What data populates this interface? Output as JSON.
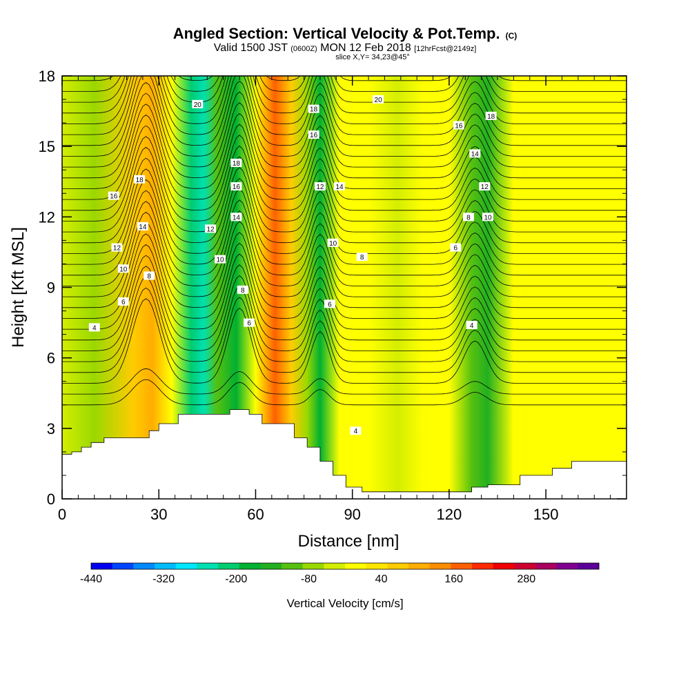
{
  "header": {
    "title": "Angled Section: Vertical Velocity & Pot.Temp.",
    "title_unit": "(C)",
    "valid_prefix": "Valid 1500 JST",
    "valid_utc": "(0600Z)",
    "valid_date": "MON 12 Feb 2018",
    "forecast": "[12hrFcst@2149z]",
    "slice": "slice X,Y= 34,23@45°"
  },
  "chart_data": {
    "type": "heatmap",
    "xlabel": "Distance [nm]",
    "ylabel": "Height [Kft MSL]",
    "xlim": [
      0,
      175
    ],
    "ylim": [
      0,
      18
    ],
    "x_ticks": [
      0,
      30,
      60,
      90,
      120,
      150
    ],
    "y_ticks": [
      0,
      3,
      6,
      9,
      12,
      15,
      18
    ],
    "x_tick_labels": [
      "0",
      "30",
      "60",
      "90",
      "120",
      "150"
    ],
    "y_tick_labels": [
      "0",
      "3",
      "6",
      "9",
      "12",
      "15",
      "18"
    ],
    "fill_variable": "Vertical Velocity [cm/s]",
    "contour_variable": "Potential temperature (C)",
    "vertical_velocity_columns": [
      {
        "x": 0,
        "w": 0
      },
      {
        "x": 10,
        "w": -30
      },
      {
        "x": 22,
        "w": 130
      },
      {
        "x": 28,
        "w": 170
      },
      {
        "x": 34,
        "w": 50
      },
      {
        "x": 40,
        "w": -170
      },
      {
        "x": 44,
        "w": -230
      },
      {
        "x": 48,
        "w": -60
      },
      {
        "x": 54,
        "w": -150
      },
      {
        "x": 60,
        "w": 60
      },
      {
        "x": 66,
        "w": 250
      },
      {
        "x": 71,
        "w": 130
      },
      {
        "x": 76,
        "w": -30
      },
      {
        "x": 80,
        "w": -150
      },
      {
        "x": 86,
        "w": 40
      },
      {
        "x": 95,
        "w": 60
      },
      {
        "x": 104,
        "w": 20
      },
      {
        "x": 112,
        "w": 40
      },
      {
        "x": 120,
        "w": 70
      },
      {
        "x": 127,
        "w": -60
      },
      {
        "x": 132,
        "w": -120
      },
      {
        "x": 140,
        "w": 60
      },
      {
        "x": 150,
        "w": 40
      },
      {
        "x": 162,
        "w": 70
      },
      {
        "x": 175,
        "w": 40
      }
    ],
    "terrain_height": [
      {
        "x": 0,
        "h": 1.9
      },
      {
        "x": 3,
        "h": 2.0
      },
      {
        "x": 6,
        "h": 2.2
      },
      {
        "x": 9,
        "h": 2.4
      },
      {
        "x": 13,
        "h": 2.6
      },
      {
        "x": 27,
        "h": 2.9
      },
      {
        "x": 30,
        "h": 3.2
      },
      {
        "x": 36,
        "h": 3.6
      },
      {
        "x": 48,
        "h": 3.6
      },
      {
        "x": 52,
        "h": 3.8
      },
      {
        "x": 58,
        "h": 3.6
      },
      {
        "x": 62,
        "h": 3.2
      },
      {
        "x": 68,
        "h": 3.2
      },
      {
        "x": 72,
        "h": 2.6
      },
      {
        "x": 76,
        "h": 2.2
      },
      {
        "x": 80,
        "h": 1.6
      },
      {
        "x": 84,
        "h": 1.0
      },
      {
        "x": 88,
        "h": 0.5
      },
      {
        "x": 93,
        "h": 0.3
      },
      {
        "x": 122,
        "h": 0.3
      },
      {
        "x": 127,
        "h": 0.5
      },
      {
        "x": 132,
        "h": 0.6
      },
      {
        "x": 142,
        "h": 1.0
      },
      {
        "x": 152,
        "h": 1.3
      },
      {
        "x": 158,
        "h": 1.6
      },
      {
        "x": 175,
        "h": 1.6
      }
    ],
    "contour_labels": [
      {
        "x": 24,
        "y": 13.6,
        "text": "18"
      },
      {
        "x": 16,
        "y": 12.9,
        "text": "16"
      },
      {
        "x": 25,
        "y": 11.6,
        "text": "14"
      },
      {
        "x": 17,
        "y": 10.7,
        "text": "12"
      },
      {
        "x": 19,
        "y": 9.8,
        "text": "10"
      },
      {
        "x": 27,
        "y": 9.5,
        "text": "8"
      },
      {
        "x": 19,
        "y": 8.4,
        "text": "6"
      },
      {
        "x": 10,
        "y": 7.3,
        "text": "4"
      },
      {
        "x": 42,
        "y": 16.8,
        "text": "20"
      },
      {
        "x": 54,
        "y": 14.3,
        "text": "18"
      },
      {
        "x": 54,
        "y": 13.3,
        "text": "16"
      },
      {
        "x": 54,
        "y": 12.0,
        "text": "14"
      },
      {
        "x": 46,
        "y": 11.5,
        "text": "12"
      },
      {
        "x": 49,
        "y": 10.2,
        "text": "10"
      },
      {
        "x": 56,
        "y": 8.9,
        "text": "8"
      },
      {
        "x": 58,
        "y": 7.5,
        "text": "6"
      },
      {
        "x": 78,
        "y": 16.6,
        "text": "18"
      },
      {
        "x": 78,
        "y": 15.5,
        "text": "16"
      },
      {
        "x": 80,
        "y": 13.3,
        "text": "12"
      },
      {
        "x": 86,
        "y": 13.3,
        "text": "14"
      },
      {
        "x": 84,
        "y": 10.9,
        "text": "10"
      },
      {
        "x": 83,
        "y": 8.3,
        "text": "6"
      },
      {
        "x": 93,
        "y": 10.3,
        "text": "8"
      },
      {
        "x": 98,
        "y": 17.0,
        "text": "20"
      },
      {
        "x": 123,
        "y": 15.9,
        "text": "16"
      },
      {
        "x": 133,
        "y": 16.3,
        "text": "18"
      },
      {
        "x": 128,
        "y": 14.7,
        "text": "14"
      },
      {
        "x": 131,
        "y": 13.3,
        "text": "12"
      },
      {
        "x": 132,
        "y": 12.0,
        "text": "10"
      },
      {
        "x": 126,
        "y": 12.0,
        "text": "8"
      },
      {
        "x": 122,
        "y": 10.7,
        "text": "6"
      },
      {
        "x": 127,
        "y": 7.4,
        "text": "4"
      },
      {
        "x": 91,
        "y": 2.9,
        "text": "4"
      }
    ],
    "colorbar": {
      "title": "Vertical Velocity [cm/s]",
      "tick_labels": [
        "-440",
        "-320",
        "-200",
        "-80",
        "40",
        "160",
        "280"
      ],
      "tick_values": [
        -440,
        -320,
        -200,
        -80,
        40,
        160,
        280
      ],
      "min": -440,
      "max": 400,
      "step": 40,
      "colors": [
        "#0000ee",
        "#0044ff",
        "#0088ff",
        "#00bbff",
        "#00e6ff",
        "#00e0b0",
        "#00cc70",
        "#00b030",
        "#22b020",
        "#55c010",
        "#99d800",
        "#d4ee00",
        "#ffff00",
        "#ffe600",
        "#ffcc00",
        "#ffad00",
        "#ff8c00",
        "#ff6000",
        "#ff2a00",
        "#ee0000",
        "#cc0030",
        "#aa0060",
        "#7f0090",
        "#5c0099"
      ]
    }
  }
}
